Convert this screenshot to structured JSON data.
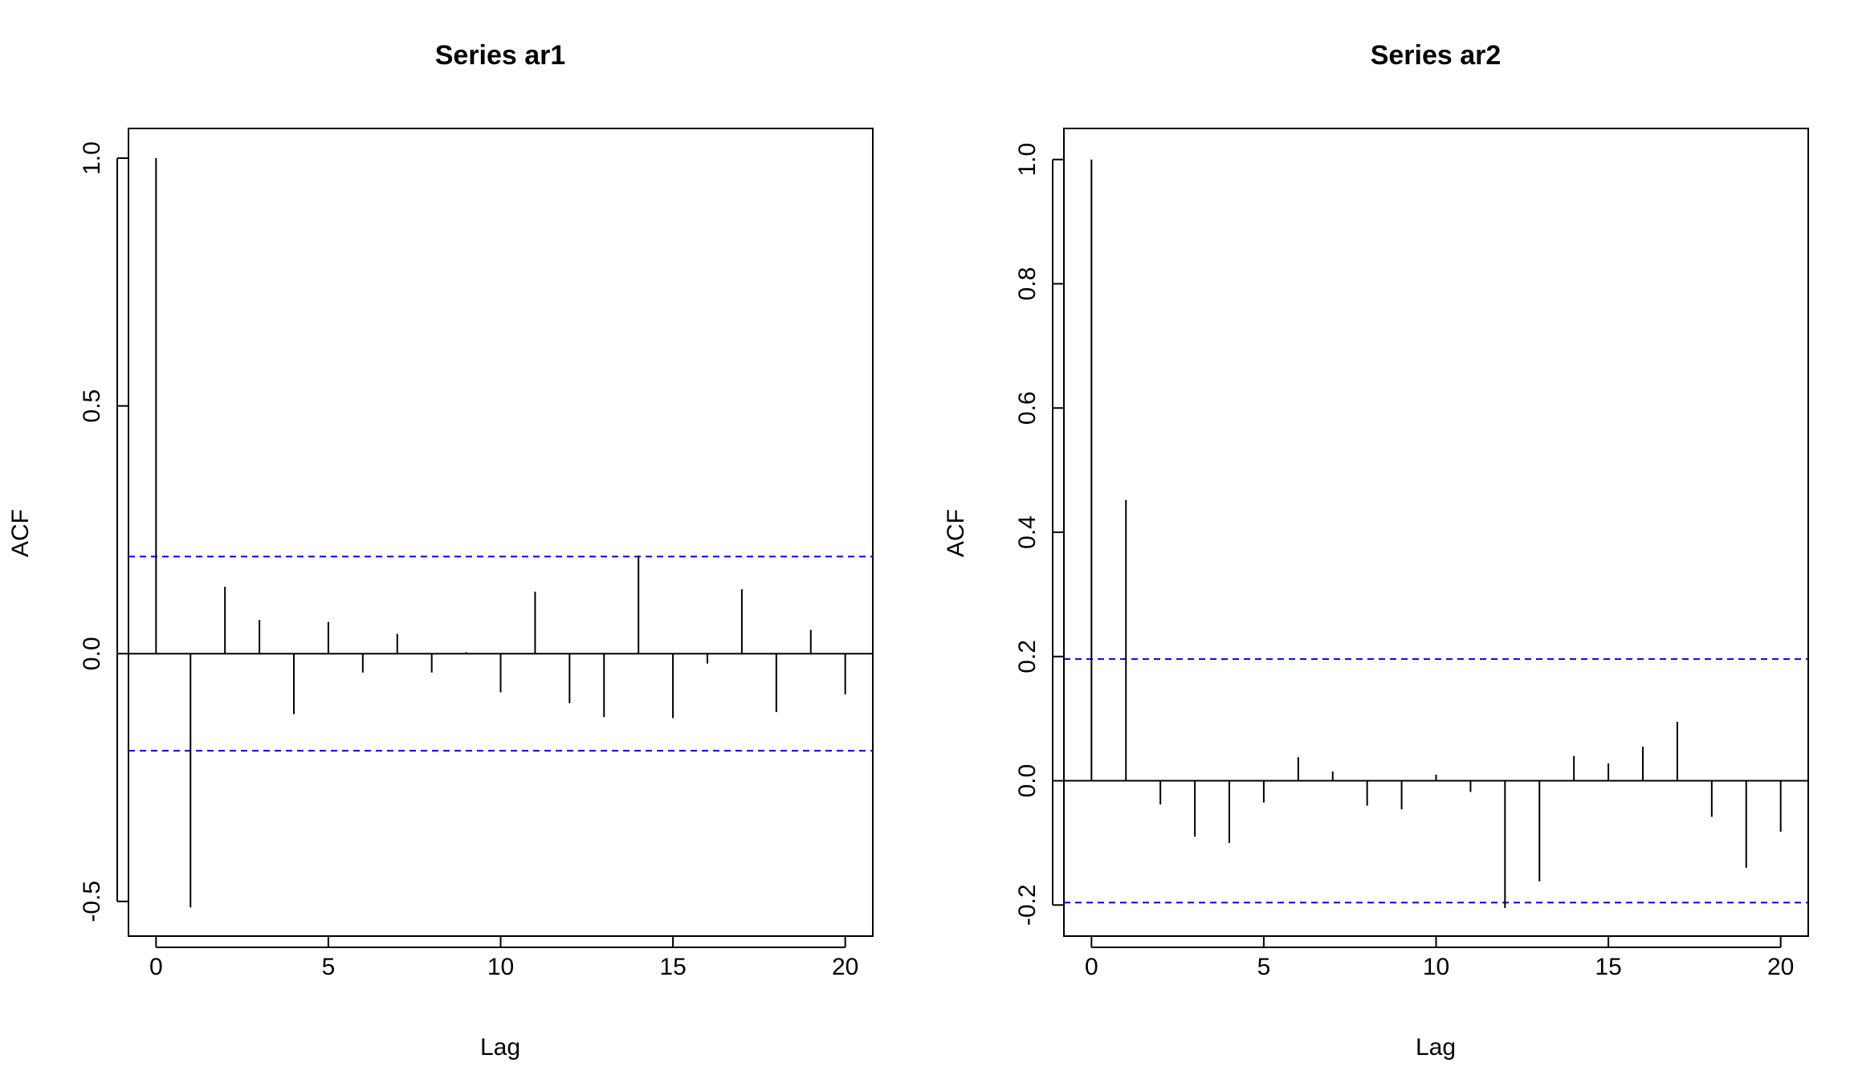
{
  "chart_data": [
    {
      "type": "bar",
      "title": "Series  ar1",
      "xlabel": "Lag",
      "ylabel": "ACF",
      "xlim": [
        -0.8,
        20.8
      ],
      "ylim": [
        -0.57,
        1.06
      ],
      "x_ticks": [
        0,
        5,
        10,
        15,
        20
      ],
      "x_tick_labels": [
        "0",
        "5",
        "10",
        "15",
        "20"
      ],
      "y_ticks": [
        -0.5,
        0.0,
        0.5,
        1.0
      ],
      "y_tick_labels": [
        "-0.5",
        "0.0",
        "0.5",
        "1.0"
      ],
      "lags": [
        0,
        1,
        2,
        3,
        4,
        5,
        6,
        7,
        8,
        9,
        10,
        11,
        12,
        13,
        14,
        15,
        16,
        17,
        18,
        19,
        20
      ],
      "values": [
        1.0,
        -0.512,
        0.135,
        0.068,
        -0.122,
        0.064,
        -0.038,
        0.04,
        -0.038,
        0.003,
        -0.078,
        0.125,
        -0.1,
        -0.128,
        0.198,
        -0.13,
        -0.02,
        0.13,
        -0.118,
        0.048,
        -0.082
      ],
      "conf_limit": 0.196,
      "bar_color": "#000000",
      "conf_color": "#0000EE",
      "grid": false,
      "legend": "none"
    },
    {
      "type": "bar",
      "title": "Series  ar2",
      "xlabel": "Lag",
      "ylabel": "ACF",
      "xlim": [
        -0.8,
        20.8
      ],
      "ylim": [
        -0.25,
        1.05
      ],
      "x_ticks": [
        0,
        5,
        10,
        15,
        20
      ],
      "x_tick_labels": [
        "0",
        "5",
        "10",
        "15",
        "20"
      ],
      "y_ticks": [
        -0.2,
        0.0,
        0.2,
        0.4,
        0.6,
        0.8,
        1.0
      ],
      "y_tick_labels": [
        "-0.2",
        "0.0",
        "0.2",
        "0.4",
        "0.6",
        "0.8",
        "1.0"
      ],
      "lags": [
        0,
        1,
        2,
        3,
        4,
        5,
        6,
        7,
        8,
        9,
        10,
        11,
        12,
        13,
        14,
        15,
        16,
        17,
        18,
        19,
        20
      ],
      "values": [
        1.0,
        0.452,
        -0.038,
        -0.09,
        -0.1,
        -0.035,
        0.038,
        0.015,
        -0.04,
        -0.046,
        0.01,
        -0.018,
        -0.205,
        -0.162,
        0.04,
        0.028,
        0.055,
        0.095,
        -0.058,
        -0.14,
        -0.082
      ],
      "conf_limit": 0.196,
      "bar_color": "#000000",
      "conf_color": "#0000EE",
      "grid": false,
      "legend": "none"
    }
  ]
}
